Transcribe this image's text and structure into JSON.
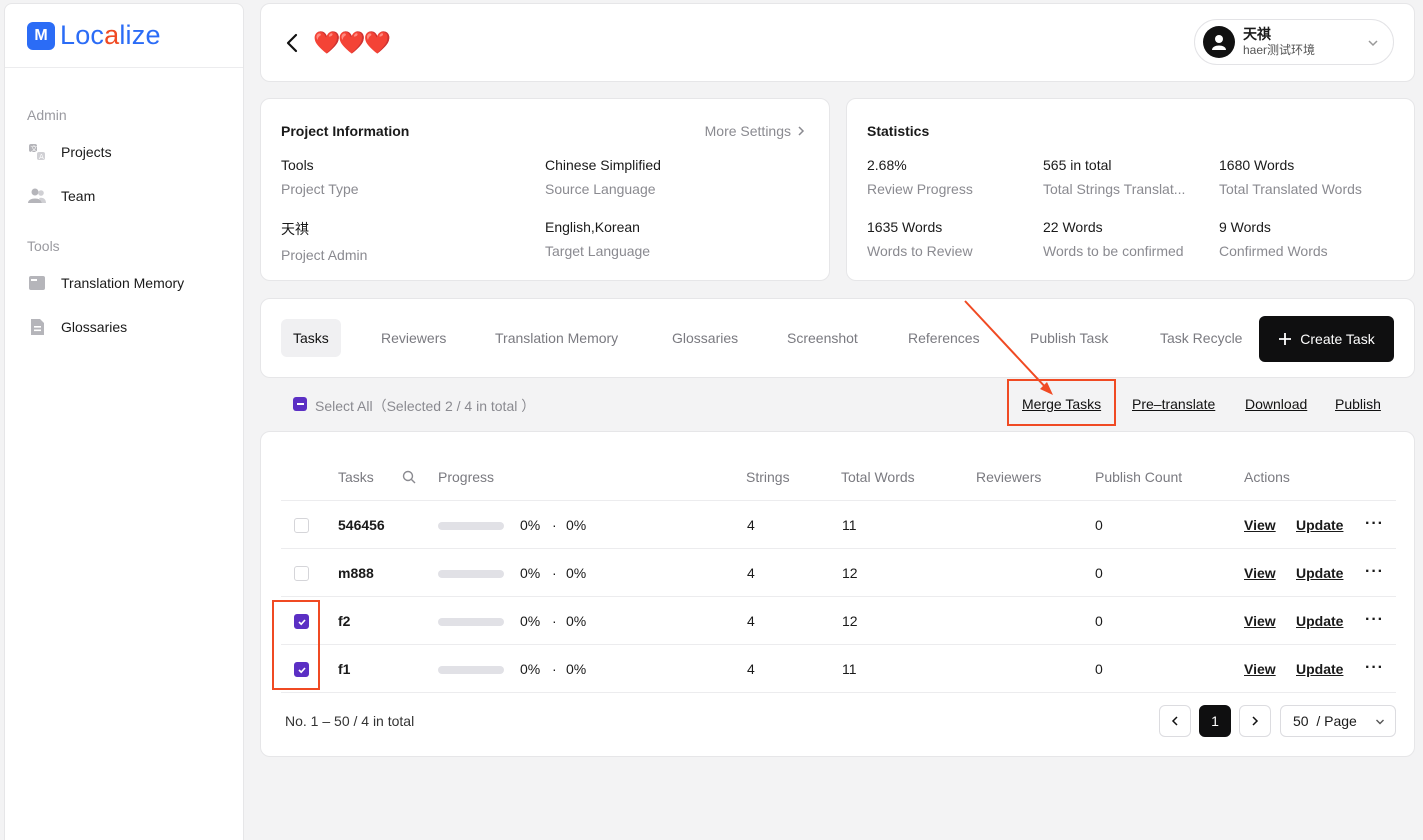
{
  "brand": {
    "mark": "M",
    "name_part1": "Loc",
    "name_red": "a",
    "name_part2": "lize"
  },
  "sidebar": {
    "admin_label": "Admin",
    "tools_label": "Tools",
    "items": [
      {
        "label": "Projects",
        "icon": "projects-icon"
      },
      {
        "label": "Team",
        "icon": "team-icon"
      },
      {
        "label": "Translation Memory",
        "icon": "translation-memory-icon"
      },
      {
        "label": "Glossaries",
        "icon": "glossaries-icon"
      }
    ]
  },
  "header": {
    "project_title": "❤️❤️❤️",
    "user_name": "天祺",
    "user_env": "haer测试环境"
  },
  "project_info": {
    "title": "Project Information",
    "more_settings": "More Settings",
    "fields": [
      {
        "value": "Tools",
        "label": "Project Type"
      },
      {
        "value": "Chinese Simplified",
        "label": "Source Language"
      },
      {
        "value": "天祺",
        "label": "Project Admin"
      },
      {
        "value": "English,Korean",
        "label": "Target Language"
      }
    ]
  },
  "statistics": {
    "title": "Statistics",
    "fields": [
      {
        "value": "2.68%",
        "label": "Review Progress"
      },
      {
        "value": "565 in total",
        "label": "Total Strings Translat..."
      },
      {
        "value": "1680 Words",
        "label": "Total Translated Words"
      },
      {
        "value": "1635 Words",
        "label": "Words to Review"
      },
      {
        "value": "22 Words",
        "label": "Words to be confirmed"
      },
      {
        "value": "9 Words",
        "label": "Confirmed Words"
      }
    ]
  },
  "tabs": [
    "Tasks",
    "Reviewers",
    "Translation Memory",
    "Glossaries",
    "Screenshot",
    "References",
    "Publish Task",
    "Task Recycle"
  ],
  "active_tab": "Tasks",
  "create_task": "Create Task",
  "bulk": {
    "select_all": "Select All（Selected 2 / 4 in total ）",
    "merge": "Merge Tasks",
    "pretranslate": "Pre–translate",
    "download": "Download",
    "publish": "Publish"
  },
  "table": {
    "headers": [
      "Tasks",
      "Progress",
      "Strings",
      "Total Words",
      "Reviewers",
      "Publish Count",
      "Actions"
    ],
    "rows": [
      {
        "name": "546456",
        "progress_a": "0%",
        "sep": "·",
        "progress_b": "0%",
        "strings": "4",
        "words": "11",
        "reviewers": "",
        "publish_count": "0",
        "checked": false
      },
      {
        "name": "m888",
        "progress_a": "0%",
        "sep": "·",
        "progress_b": "0%",
        "strings": "4",
        "words": "12",
        "reviewers": "",
        "publish_count": "0",
        "checked": false
      },
      {
        "name": "f2",
        "progress_a": "0%",
        "sep": "·",
        "progress_b": "0%",
        "strings": "4",
        "words": "12",
        "reviewers": "",
        "publish_count": "0",
        "checked": true
      },
      {
        "name": "f1",
        "progress_a": "0%",
        "sep": "·",
        "progress_b": "0%",
        "strings": "4",
        "words": "11",
        "reviewers": "",
        "publish_count": "0",
        "checked": true
      }
    ],
    "view_label": "View",
    "update_label": "Update",
    "more_label": "···"
  },
  "pagination": {
    "summary": "No. 1 – 50 / 4 in total",
    "current_page": "1",
    "page_size": "50",
    "page_size_suffix": "/ Page"
  },
  "colors": {
    "accent": "#2b6cf6",
    "annotation": "#f04a23",
    "checkbox": "#5b2fc4"
  }
}
